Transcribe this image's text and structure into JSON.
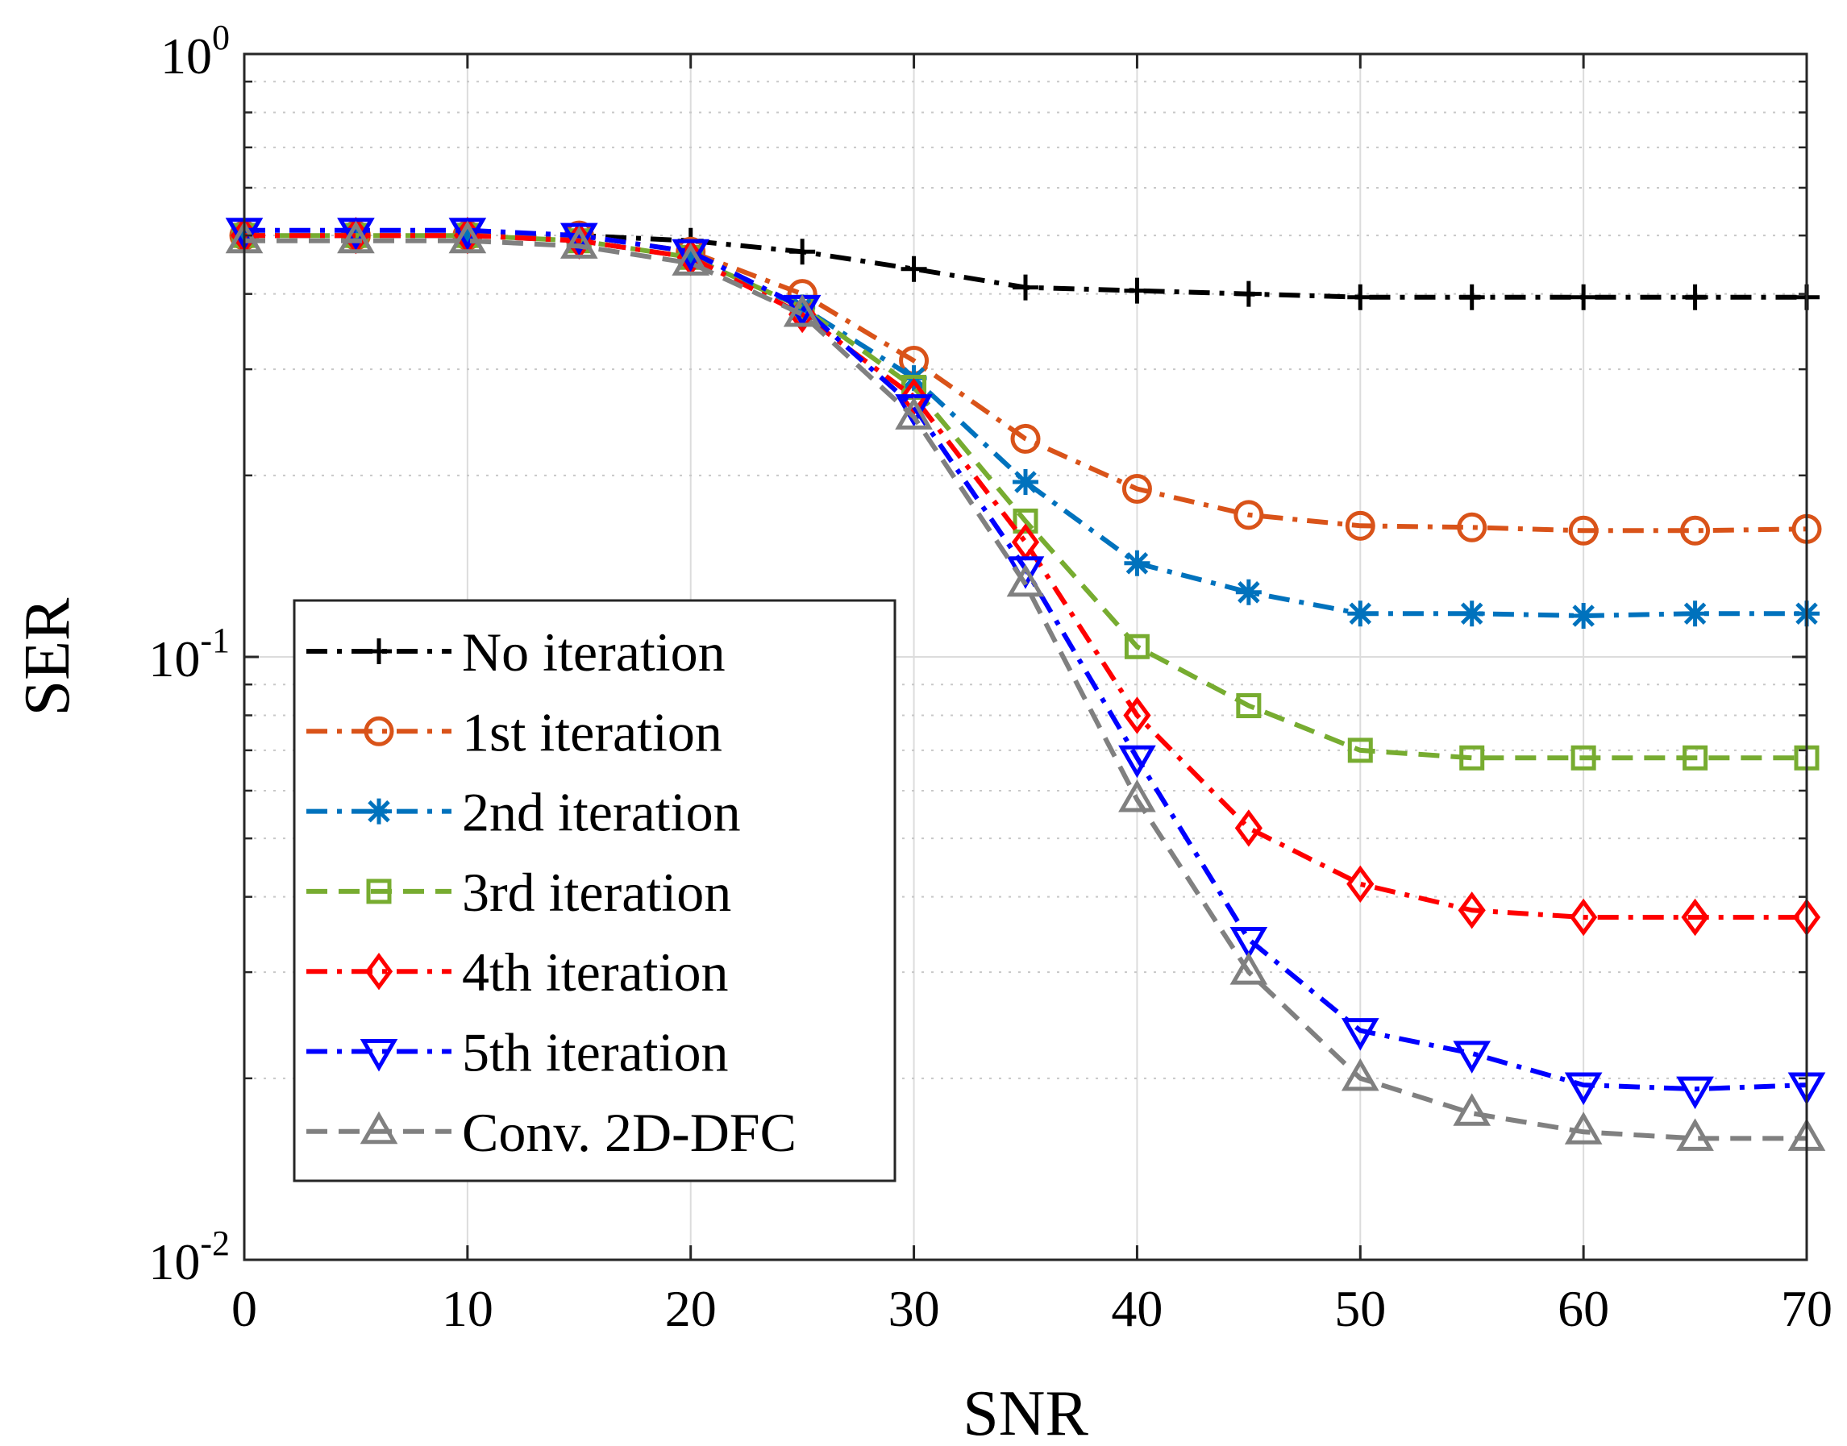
{
  "chart_data": {
    "type": "line",
    "title": "",
    "xlabel": "SNR",
    "ylabel": "SER",
    "yscale": "log",
    "xlim": [
      0,
      70
    ],
    "ylim": [
      0.01,
      1
    ],
    "grid": true,
    "legend_position": "bottom-left",
    "x_ticks": [
      "0",
      "10",
      "20",
      "30",
      "40",
      "50",
      "60",
      "70"
    ],
    "y_ticks": [
      {
        "base": "10",
        "exp": "0",
        "value": 1
      },
      {
        "base": "10",
        "exp": "-1",
        "value": 0.1
      },
      {
        "base": "10",
        "exp": "-2",
        "value": 0.01
      }
    ],
    "x": [
      0,
      5,
      10,
      15,
      20,
      25,
      30,
      35,
      40,
      45,
      50,
      55,
      60,
      65,
      70
    ],
    "series": [
      {
        "name": "No iteration",
        "color": "#000000",
        "dash": "dashdot",
        "marker": "plus",
        "values": [
          0.5,
          0.5,
          0.5,
          0.5,
          0.49,
          0.47,
          0.44,
          0.41,
          0.405,
          0.4,
          0.395,
          0.395,
          0.395,
          0.395,
          0.395
        ]
      },
      {
        "name": "1st iteration",
        "color": "#D95319",
        "dash": "dashdot",
        "marker": "circle",
        "values": [
          0.5,
          0.5,
          0.5,
          0.5,
          0.47,
          0.4,
          0.31,
          0.23,
          0.19,
          0.172,
          0.165,
          0.164,
          0.162,
          0.162,
          0.163
        ]
      },
      {
        "name": "2nd iteration",
        "color": "#0072BD",
        "dash": "dashdot",
        "marker": "asterisk",
        "values": [
          0.5,
          0.5,
          0.5,
          0.49,
          0.46,
          0.38,
          0.29,
          0.195,
          0.143,
          0.128,
          0.118,
          0.118,
          0.117,
          0.118,
          0.118
        ]
      },
      {
        "name": "3rd iteration",
        "color": "#77AC30",
        "dash": "dashed",
        "marker": "square",
        "values": [
          0.5,
          0.5,
          0.5,
          0.49,
          0.46,
          0.38,
          0.28,
          0.168,
          0.104,
          0.083,
          0.07,
          0.068,
          0.068,
          0.068,
          0.068
        ]
      },
      {
        "name": "4th iteration",
        "color": "#FF0000",
        "dash": "dashdot",
        "marker": "diamond",
        "values": [
          0.5,
          0.5,
          0.5,
          0.49,
          0.46,
          0.37,
          0.27,
          0.155,
          0.08,
          0.052,
          0.042,
          0.038,
          0.037,
          0.037,
          0.037
        ]
      },
      {
        "name": "5th iteration",
        "color": "#0000FF",
        "dash": "dashdot",
        "marker": "triangle-down",
        "values": [
          0.51,
          0.51,
          0.51,
          0.5,
          0.47,
          0.38,
          0.26,
          0.14,
          0.068,
          0.034,
          0.024,
          0.022,
          0.0195,
          0.0192,
          0.0195
        ]
      },
      {
        "name": "Conv. 2D-DFC",
        "color": "#808080",
        "dash": "dashed",
        "marker": "triangle-up",
        "values": [
          0.49,
          0.49,
          0.49,
          0.48,
          0.45,
          0.37,
          0.25,
          0.132,
          0.058,
          0.03,
          0.02,
          0.0175,
          0.0163,
          0.0159,
          0.0159
        ]
      }
    ]
  }
}
